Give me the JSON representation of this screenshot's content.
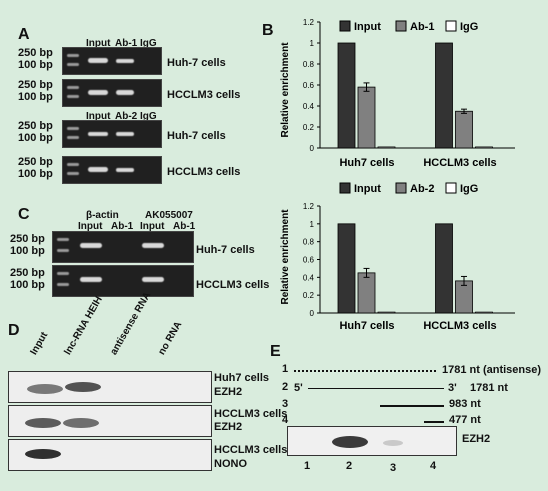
{
  "panels": {
    "a": "A",
    "b": "B",
    "c": "C",
    "d": "D",
    "e": "E"
  },
  "sizes": {
    "s250": "250 bp",
    "s100": "100 bp"
  },
  "cells": {
    "huh7": "Huh-7 cells",
    "hcclm3": "HCCLM3 cells",
    "huh7_axis": "Huh7 cells",
    "hcclm3_axis": "HCCLM3 cells"
  },
  "lanes_a1": {
    "input": "Input",
    "ab": "Ab-1",
    "igg": "IgG"
  },
  "lanes_a2": {
    "input": "Input",
    "ab": "Ab-2",
    "igg": "IgG"
  },
  "panel_c": {
    "gene1": "β-actin",
    "gene2": "AK055007",
    "input": "Input",
    "ab": "Ab-1"
  },
  "panel_d": {
    "lanes": [
      "Input",
      "lnc-RNA HEIH",
      "antisense RNA",
      "no RNA"
    ],
    "blot1": [
      "Huh7 cells",
      "EZH2"
    ],
    "blot2": [
      "HCCLM3 cells",
      "EZH2"
    ],
    "blot3": [
      "HCCLM3 cells",
      "NONO"
    ]
  },
  "panel_e": {
    "row_nums": [
      "1",
      "2",
      "3",
      "4"
    ],
    "row1": "1781 nt (antisense)",
    "row2_5": "5'",
    "row2_3": "3'",
    "row2": "1781 nt",
    "row3": "983 nt",
    "row4": "477  nt",
    "blot": "EZH2",
    "lanes": [
      "1",
      "2",
      "3",
      "4"
    ]
  },
  "chart_data": [
    {
      "type": "bar",
      "categories": [
        "Huh7 cells",
        "HCCLM3 cells"
      ],
      "series": [
        {
          "name": "Input",
          "values": [
            1.0,
            1.0
          ],
          "color": "#333333"
        },
        {
          "name": "Ab-1",
          "values": [
            0.58,
            0.35
          ],
          "errors": [
            0.04,
            0.02
          ],
          "color": "#808080"
        },
        {
          "name": "IgG",
          "values": [
            0.01,
            0.01
          ],
          "color": "#ffffff"
        }
      ],
      "ylabel": "Relative enrichment",
      "ylim": [
        0,
        1.2
      ],
      "yticks": [
        "0",
        "0.2",
        "0.4",
        "0.6",
        "0.8",
        "1",
        "1.2"
      ],
      "legend": "top"
    },
    {
      "type": "bar",
      "categories": [
        "Huh7 cells",
        "HCCLM3 cells"
      ],
      "series": [
        {
          "name": "Input",
          "values": [
            1.0,
            1.0
          ],
          "color": "#333333"
        },
        {
          "name": "Ab-2",
          "values": [
            0.45,
            0.36
          ],
          "errors": [
            0.05,
            0.05
          ],
          "color": "#808080"
        },
        {
          "name": "IgG",
          "values": [
            0.01,
            0.01
          ],
          "color": "#ffffff"
        }
      ],
      "ylabel": "Relative enrichment",
      "ylim": [
        0,
        1.2
      ],
      "yticks": [
        "0",
        "0.2",
        "0.4",
        "0.6",
        "0.8",
        "1",
        "1.2"
      ],
      "legend": "top"
    }
  ]
}
